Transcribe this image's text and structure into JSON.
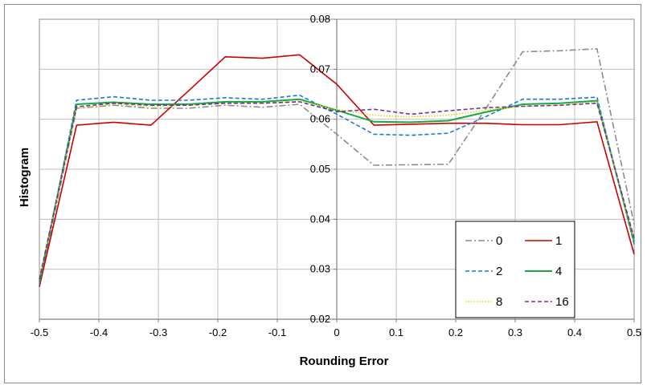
{
  "chart_data": {
    "type": "line",
    "title": "",
    "xlabel": "Rounding Error",
    "ylabel": "Histogram",
    "xlim": [
      -0.5,
      0.5
    ],
    "ylim": [
      0.02,
      0.08
    ],
    "x_ticks": [
      "-0.5",
      "-0.4",
      "-0.3",
      "-0.2",
      "-0.1",
      "0",
      "0.1",
      "0.2",
      "0.3",
      "0.4",
      "0.5"
    ],
    "y_ticks": [
      "0.02",
      "0.03",
      "0.04",
      "0.05",
      "0.06",
      "0.07",
      "0.08"
    ],
    "grid": true,
    "legend_position": "bottom-right",
    "x": [
      -0.5,
      -0.4375,
      -0.375,
      -0.3125,
      -0.25,
      -0.1875,
      -0.125,
      -0.0625,
      0,
      0.0625,
      0.125,
      0.1875,
      0.25,
      0.3125,
      0.375,
      0.4375,
      0.5
    ],
    "series": [
      {
        "name": "0",
        "color": "#8c8c8c",
        "dash": "dashdot",
        "values": [
          0.0265,
          0.0622,
          0.0628,
          0.0622,
          0.0622,
          0.0628,
          0.0624,
          0.063,
          0.057,
          0.0508,
          0.0509,
          0.051,
          0.062,
          0.0735,
          0.0737,
          0.0741,
          0.039
        ]
      },
      {
        "name": "1",
        "color": "#cc0000",
        "dash": "solid",
        "values": [
          0.0265,
          0.0588,
          0.0594,
          0.0588,
          0.0656,
          0.0725,
          0.0722,
          0.0729,
          0.067,
          0.0588,
          0.059,
          0.0592,
          0.0592,
          0.0589,
          0.0589,
          0.0595,
          0.033
        ]
      },
      {
        "name": "2",
        "color": "#1f77d4",
        "dash": "dashed",
        "values": [
          0.027,
          0.0638,
          0.0645,
          0.0638,
          0.0638,
          0.0643,
          0.064,
          0.0648,
          0.061,
          0.057,
          0.0568,
          0.0572,
          0.0605,
          0.064,
          0.064,
          0.0644,
          0.035
        ]
      },
      {
        "name": "4",
        "color": "#1aa845",
        "dash": "solid",
        "values": [
          0.0275,
          0.063,
          0.0634,
          0.063,
          0.063,
          0.0635,
          0.0635,
          0.064,
          0.0618,
          0.0595,
          0.0594,
          0.0597,
          0.0614,
          0.063,
          0.0632,
          0.0637,
          0.0355
        ]
      },
      {
        "name": "8",
        "color": "#e6d800",
        "dash": "dotted",
        "values": [
          0.028,
          0.0622,
          0.063,
          0.0626,
          0.0628,
          0.0632,
          0.0632,
          0.0636,
          0.062,
          0.0608,
          0.0605,
          0.0608,
          0.0618,
          0.0626,
          0.0628,
          0.0634,
          0.036
        ]
      },
      {
        "name": "16",
        "color": "#7030a0",
        "dash": "dashed",
        "values": [
          0.028,
          0.0625,
          0.0632,
          0.0628,
          0.0628,
          0.0632,
          0.0632,
          0.0635,
          0.0615,
          0.062,
          0.061,
          0.0617,
          0.0623,
          0.0626,
          0.0628,
          0.0632,
          0.0362
        ]
      }
    ]
  }
}
